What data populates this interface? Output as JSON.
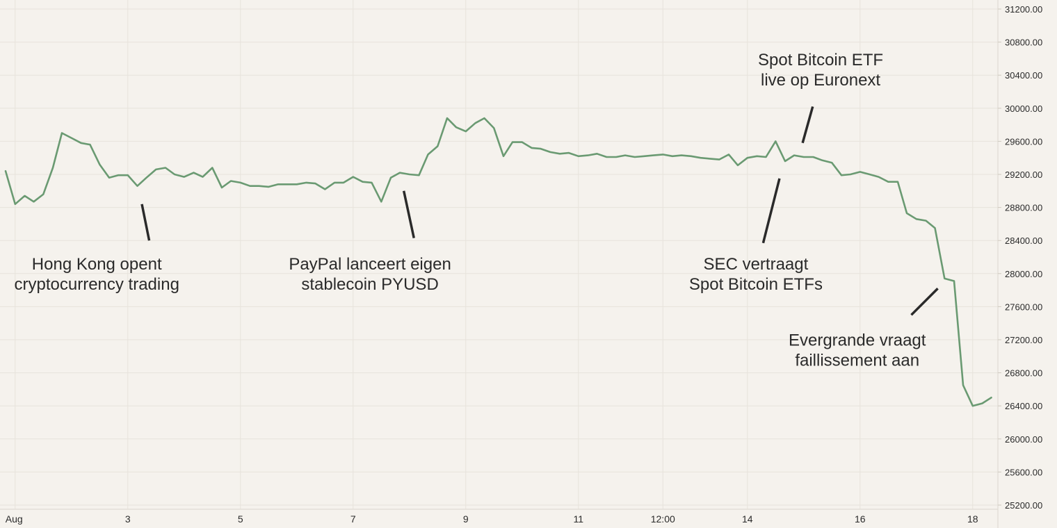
{
  "chart_data": {
    "type": "line",
    "title": "",
    "xlabel": "",
    "ylabel": "",
    "grid": true,
    "line_color": "#6a9a72",
    "ylim": [
      25100,
      31300
    ],
    "y_ticks": [
      25200,
      25600,
      26000,
      26400,
      26800,
      27200,
      27600,
      28000,
      28400,
      28800,
      29200,
      29600,
      30000,
      30400,
      30800,
      31200
    ],
    "y_tick_labels": [
      "25200.00",
      "25600.00",
      "26000.00",
      "26400.00",
      "26800.00",
      "27200.00",
      "27600.00",
      "28000.00",
      "28400.00",
      "28800.00",
      "29200.00",
      "29600.00",
      "30000.00",
      "30400.00",
      "30800.00",
      "31200.00"
    ],
    "x_range": [
      0.8,
      18.35
    ],
    "x_ticks": [
      {
        "t": 1,
        "label": "Aug"
      },
      {
        "t": 3,
        "label": "3"
      },
      {
        "t": 5,
        "label": "5"
      },
      {
        "t": 7,
        "label": "7"
      },
      {
        "t": 9,
        "label": "9"
      },
      {
        "t": 11,
        "label": "11"
      },
      {
        "t": 12.5,
        "label": "12:00"
      },
      {
        "t": 14,
        "label": "14"
      },
      {
        "t": 16,
        "label": "16"
      },
      {
        "t": 18,
        "label": "18"
      }
    ],
    "series": [
      {
        "values": [
          [
            0.83,
            29240
          ],
          [
            1.0,
            28840
          ],
          [
            1.17,
            28940
          ],
          [
            1.33,
            28870
          ],
          [
            1.5,
            28960
          ],
          [
            1.67,
            29280
          ],
          [
            1.83,
            29700
          ],
          [
            2.0,
            29640
          ],
          [
            2.17,
            29580
          ],
          [
            2.33,
            29560
          ],
          [
            2.5,
            29320
          ],
          [
            2.67,
            29160
          ],
          [
            2.83,
            29190
          ],
          [
            3.0,
            29190
          ],
          [
            3.17,
            29060
          ],
          [
            3.33,
            29160
          ],
          [
            3.5,
            29260
          ],
          [
            3.67,
            29280
          ],
          [
            3.83,
            29200
          ],
          [
            4.0,
            29170
          ],
          [
            4.17,
            29220
          ],
          [
            4.33,
            29170
          ],
          [
            4.5,
            29280
          ],
          [
            4.67,
            29040
          ],
          [
            4.83,
            29120
          ],
          [
            5.0,
            29100
          ],
          [
            5.17,
            29060
          ],
          [
            5.33,
            29060
          ],
          [
            5.5,
            29050
          ],
          [
            5.67,
            29080
          ],
          [
            5.83,
            29080
          ],
          [
            6.0,
            29080
          ],
          [
            6.17,
            29100
          ],
          [
            6.33,
            29090
          ],
          [
            6.5,
            29020
          ],
          [
            6.67,
            29100
          ],
          [
            6.83,
            29100
          ],
          [
            7.0,
            29170
          ],
          [
            7.17,
            29110
          ],
          [
            7.33,
            29100
          ],
          [
            7.5,
            28870
          ],
          [
            7.67,
            29160
          ],
          [
            7.83,
            29220
          ],
          [
            8.0,
            29200
          ],
          [
            8.17,
            29190
          ],
          [
            8.33,
            29440
          ],
          [
            8.5,
            29540
          ],
          [
            8.67,
            29880
          ],
          [
            8.83,
            29770
          ],
          [
            9.0,
            29720
          ],
          [
            9.17,
            29820
          ],
          [
            9.33,
            29880
          ],
          [
            9.5,
            29760
          ],
          [
            9.67,
            29420
          ],
          [
            9.83,
            29590
          ],
          [
            10.0,
            29590
          ],
          [
            10.17,
            29520
          ],
          [
            10.33,
            29510
          ],
          [
            10.5,
            29470
          ],
          [
            10.67,
            29450
          ],
          [
            10.83,
            29460
          ],
          [
            11.0,
            29420
          ],
          [
            11.17,
            29430
          ],
          [
            11.33,
            29450
          ],
          [
            11.5,
            29410
          ],
          [
            11.67,
            29410
          ],
          [
            11.83,
            29430
          ],
          [
            12.0,
            29410
          ],
          [
            12.17,
            29420
          ],
          [
            12.33,
            29430
          ],
          [
            12.5,
            29440
          ],
          [
            12.67,
            29420
          ],
          [
            12.83,
            29430
          ],
          [
            13.0,
            29420
          ],
          [
            13.17,
            29400
          ],
          [
            13.33,
            29390
          ],
          [
            13.5,
            29380
          ],
          [
            13.67,
            29440
          ],
          [
            13.83,
            29310
          ],
          [
            14.0,
            29400
          ],
          [
            14.17,
            29420
          ],
          [
            14.33,
            29410
          ],
          [
            14.5,
            29600
          ],
          [
            14.67,
            29360
          ],
          [
            14.83,
            29430
          ],
          [
            15.0,
            29410
          ],
          [
            15.17,
            29410
          ],
          [
            15.33,
            29370
          ],
          [
            15.5,
            29340
          ],
          [
            15.67,
            29190
          ],
          [
            15.83,
            29200
          ],
          [
            16.0,
            29230
          ],
          [
            16.17,
            29200
          ],
          [
            16.33,
            29170
          ],
          [
            16.5,
            29110
          ],
          [
            16.67,
            29110
          ],
          [
            16.83,
            28730
          ],
          [
            17.0,
            28660
          ],
          [
            17.17,
            28640
          ],
          [
            17.33,
            28550
          ],
          [
            17.5,
            27940
          ],
          [
            17.67,
            27910
          ],
          [
            17.83,
            26650
          ],
          [
            18.0,
            26400
          ],
          [
            18.17,
            26430
          ],
          [
            18.33,
            26500
          ]
        ]
      }
    ],
    "annotations": [
      {
        "lines": [
          "Hong Kong opent",
          "cryptocurrency trading"
        ],
        "x": 2.45,
        "y": 28050,
        "pointer": [
          [
            3.25,
            28840
          ],
          [
            3.38,
            28400
          ]
        ]
      },
      {
        "lines": [
          "PayPal lanceert eigen",
          "stablecoin PYUSD"
        ],
        "x": 7.3,
        "y": 28050,
        "pointer": [
          [
            7.9,
            29000
          ],
          [
            8.08,
            28430
          ]
        ]
      },
      {
        "lines": [
          "SEC vertraagt",
          "Spot Bitcoin ETFs"
        ],
        "x": 14.15,
        "y": 28050,
        "pointer": [
          [
            14.57,
            29150
          ],
          [
            14.28,
            28370
          ]
        ]
      },
      {
        "lines": [
          "Spot Bitcoin ETF",
          "live op Euronext"
        ],
        "x": 15.3,
        "y": 30520,
        "pointer": [
          [
            15.16,
            30020
          ],
          [
            14.98,
            29580
          ]
        ]
      },
      {
        "lines": [
          "Evergrande vraagt",
          "faillissement aan"
        ],
        "x": 15.95,
        "y": 27130,
        "pointer": [
          [
            17.38,
            27820
          ],
          [
            16.91,
            27500
          ]
        ]
      }
    ]
  }
}
